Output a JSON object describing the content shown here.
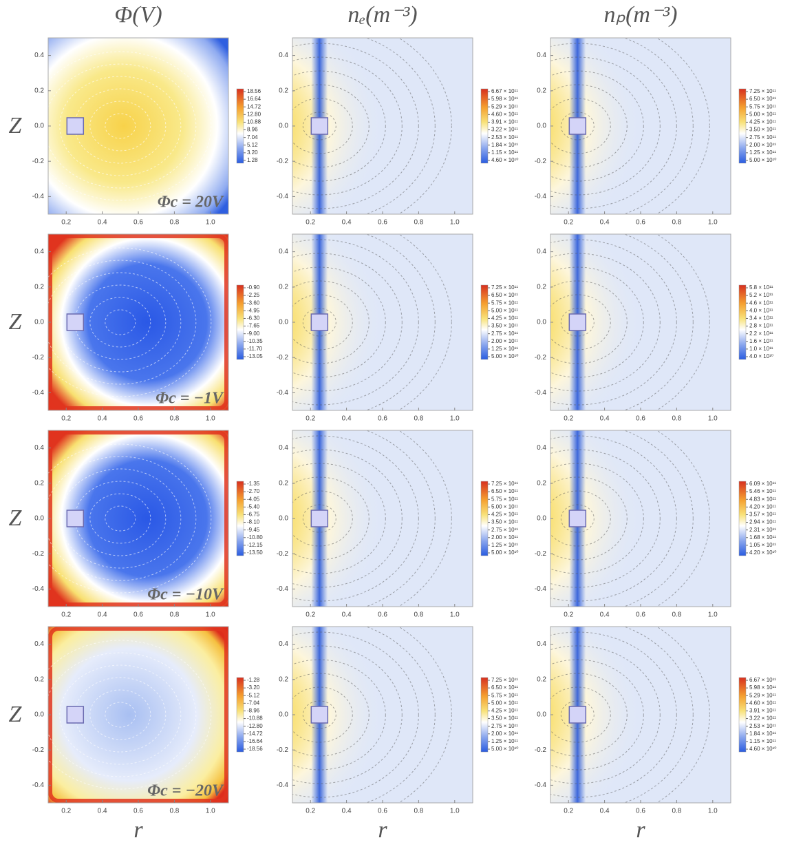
{
  "chart_data": [
    {
      "type": "contour",
      "title": "Φ(V)",
      "ylabel": "Z",
      "annotation": "Φc = 20V",
      "xlim": [
        0.1,
        1.1
      ],
      "ylim": [
        -0.5,
        0.5
      ],
      "xticks": [
        0.2,
        0.4,
        0.6,
        0.8,
        {
          "value": 1,
          "label": "1.0"
        }
      ],
      "yticks": [
        -0.4,
        -0.2,
        {
          "value": 0,
          "label": "0.0"
        },
        0.2,
        0.4
      ],
      "colorbar_ticks": [
        18.56,
        16.64,
        14.72,
        {
          "value": 12.8,
          "label": "12.80"
        },
        10.88,
        8.96,
        7.04,
        5.12,
        {
          "value": 3.2,
          "label": "3.20"
        },
        1.28
      ]
    },
    {
      "type": "contour",
      "title": "nₑ(m⁻³)",
      "xlim": [
        0.1,
        1.1
      ],
      "ylim": [
        -0.5,
        0.5
      ],
      "xticks": [
        0.2,
        0.4,
        0.6,
        0.8,
        {
          "value": 1,
          "label": "1.0"
        }
      ],
      "yticks": [
        -0.4,
        -0.2,
        {
          "value": 0,
          "label": "0.0"
        },
        0.2,
        0.4
      ],
      "colorbar_ticks": [
        {
          "value": 667000000000,
          "label": "6.67 × 10¹¹"
        },
        {
          "value": 598000000000,
          "label": "5.98 × 10¹¹"
        },
        {
          "value": 529000000000,
          "label": "5.29 × 10¹¹"
        },
        {
          "value": 460000000000,
          "label": "4.60 × 10¹¹"
        },
        {
          "value": 391000000000,
          "label": "3.91 × 10¹¹"
        },
        {
          "value": 322000000000,
          "label": "3.22 × 10¹¹"
        },
        {
          "value": 253000000000,
          "label": "2.53 × 10¹¹"
        },
        {
          "value": 184000000000,
          "label": "1.84 × 10¹¹"
        },
        {
          "value": 115000000000,
          "label": "1.15 × 10¹¹"
        },
        {
          "value": 46000000000,
          "label": "4.60 × 10¹⁰"
        }
      ]
    },
    {
      "type": "contour",
      "title": "nₚ(m⁻³)",
      "xlim": [
        0.1,
        1.1
      ],
      "ylim": [
        -0.5,
        0.5
      ],
      "xticks": [
        0.2,
        0.4,
        0.6,
        0.8,
        {
          "value": 1,
          "label": "1.0"
        }
      ],
      "yticks": [
        -0.4,
        -0.2,
        {
          "value": 0,
          "label": "0.0"
        },
        0.2,
        0.4
      ],
      "colorbar_ticks": [
        {
          "value": 725000000000,
          "label": "7.25 × 10¹¹"
        },
        {
          "value": 650000000000,
          "label": "6.50 × 10¹¹"
        },
        {
          "value": 575000000000,
          "label": "5.75 × 10¹¹"
        },
        {
          "value": 500000000000,
          "label": "5.00 × 10¹¹"
        },
        {
          "value": 425000000000,
          "label": "4.25 × 10¹¹"
        },
        {
          "value": 350000000000,
          "label": "3.50 × 10¹¹"
        },
        {
          "value": 275000000000,
          "label": "2.75 × 10¹¹"
        },
        {
          "value": 200000000000,
          "label": "2.00 × 10¹¹"
        },
        {
          "value": 125000000000,
          "label": "1.25 × 10¹¹"
        },
        {
          "value": 50000000000,
          "label": "5.00 × 10¹⁰"
        }
      ]
    },
    {
      "type": "contour",
      "ylabel": "Z",
      "annotation": "Φc = −1V",
      "xlim": [
        0.1,
        1.1
      ],
      "ylim": [
        -0.5,
        0.5
      ],
      "xticks": [
        0.2,
        0.4,
        0.6,
        0.8,
        {
          "value": 1,
          "label": "1.0"
        }
      ],
      "yticks": [
        -0.4,
        -0.2,
        {
          "value": 0,
          "label": "0.0"
        },
        0.2,
        0.4
      ],
      "colorbar_ticks": [
        {
          "value": -0.9,
          "label": "-0.90"
        },
        -2.25,
        {
          "value": -3.6,
          "label": "-3.60"
        },
        -4.95,
        {
          "value": -6.3,
          "label": "-6.30"
        },
        -7.65,
        {
          "value": -9,
          "label": "-9.00"
        },
        -10.35,
        {
          "value": -11.7,
          "label": "-11.70"
        },
        -13.05
      ]
    },
    {
      "type": "contour",
      "xlim": [
        0.1,
        1.1
      ],
      "ylim": [
        -0.5,
        0.5
      ],
      "xticks": [
        0.2,
        0.4,
        0.6,
        0.8,
        {
          "value": 1,
          "label": "1.0"
        }
      ],
      "yticks": [
        -0.4,
        -0.2,
        {
          "value": 0,
          "label": "0.0"
        },
        0.2,
        0.4
      ],
      "colorbar_ticks": [
        {
          "value": 725000000000,
          "label": "7.25 × 10¹¹"
        },
        {
          "value": 650000000000,
          "label": "6.50 × 10¹¹"
        },
        {
          "value": 575000000000,
          "label": "5.75 × 10¹¹"
        },
        {
          "value": 500000000000,
          "label": "5.00 × 10¹¹"
        },
        {
          "value": 425000000000,
          "label": "4.25 × 10¹¹"
        },
        {
          "value": 350000000000,
          "label": "3.50 × 10¹¹"
        },
        {
          "value": 275000000000,
          "label": "2.75 × 10¹¹"
        },
        {
          "value": 200000000000,
          "label": "2.00 × 10¹¹"
        },
        {
          "value": 125000000000,
          "label": "1.25 × 10¹¹"
        },
        {
          "value": 50000000000,
          "label": "5.00 × 10¹⁰"
        }
      ]
    },
    {
      "type": "contour",
      "xlim": [
        0.1,
        1.1
      ],
      "ylim": [
        -0.5,
        0.5
      ],
      "xticks": [
        0.2,
        0.4,
        0.6,
        0.8,
        {
          "value": 1,
          "label": "1.0"
        }
      ],
      "yticks": [
        -0.4,
        -0.2,
        {
          "value": 0,
          "label": "0.0"
        },
        0.2,
        0.4
      ],
      "colorbar_ticks": [
        {
          "value": 580000000000,
          "label": "5.8 × 10¹¹"
        },
        {
          "value": 520000000000,
          "label": "5.2 × 10¹¹"
        },
        {
          "value": 460000000000,
          "label": "4.6 × 10¹¹"
        },
        {
          "value": 400000000000,
          "label": "4.0 × 10¹¹"
        },
        {
          "value": 340000000000,
          "label": "3.4 × 10¹¹"
        },
        {
          "value": 280000000000,
          "label": "2.8 × 10¹¹"
        },
        {
          "value": 220000000000,
          "label": "2.2 × 10¹¹"
        },
        {
          "value": 160000000000,
          "label": "1.6 × 10¹¹"
        },
        {
          "value": 100000000000,
          "label": "1.0 × 10¹¹"
        },
        {
          "value": 40000000000,
          "label": "4.0 × 10¹⁰"
        }
      ]
    },
    {
      "type": "contour",
      "ylabel": "Z",
      "annotation": "Φc = −10V",
      "xlim": [
        0.1,
        1.1
      ],
      "ylim": [
        -0.5,
        0.5
      ],
      "xticks": [
        0.2,
        0.4,
        0.6,
        0.8,
        {
          "value": 1,
          "label": "1.0"
        }
      ],
      "yticks": [
        -0.4,
        -0.2,
        {
          "value": 0,
          "label": "0.0"
        },
        0.2,
        0.4
      ],
      "colorbar_ticks": [
        -1.35,
        {
          "value": -2.7,
          "label": "-2.70"
        },
        -4.05,
        {
          "value": -5.4,
          "label": "-5.40"
        },
        -6.75,
        {
          "value": -8.1,
          "label": "-8.10"
        },
        -9.45,
        {
          "value": -10.8,
          "label": "-10.80"
        },
        -12.15,
        {
          "value": -13.5,
          "label": "-13.50"
        }
      ]
    },
    {
      "type": "contour",
      "xlim": [
        0.1,
        1.1
      ],
      "ylim": [
        -0.5,
        0.5
      ],
      "xticks": [
        0.2,
        0.4,
        0.6,
        0.8,
        {
          "value": 1,
          "label": "1.0"
        }
      ],
      "yticks": [
        -0.4,
        -0.2,
        {
          "value": 0,
          "label": "0.0"
        },
        0.2,
        0.4
      ],
      "colorbar_ticks": [
        {
          "value": 725000000000,
          "label": "7.25 × 10¹¹"
        },
        {
          "value": 650000000000,
          "label": "6.50 × 10¹¹"
        },
        {
          "value": 575000000000,
          "label": "5.75 × 10¹¹"
        },
        {
          "value": 500000000000,
          "label": "5.00 × 10¹¹"
        },
        {
          "value": 425000000000,
          "label": "4.25 × 10¹¹"
        },
        {
          "value": 350000000000,
          "label": "3.50 × 10¹¹"
        },
        {
          "value": 275000000000,
          "label": "2.75 × 10¹¹"
        },
        {
          "value": 200000000000,
          "label": "2.00 × 10¹¹"
        },
        {
          "value": 125000000000,
          "label": "1.25 × 10¹¹"
        },
        {
          "value": 50000000000,
          "label": "5.00 × 10¹⁰"
        }
      ]
    },
    {
      "type": "contour",
      "xlim": [
        0.1,
        1.1
      ],
      "ylim": [
        -0.5,
        0.5
      ],
      "xticks": [
        0.2,
        0.4,
        0.6,
        0.8,
        {
          "value": 1,
          "label": "1.0"
        }
      ],
      "yticks": [
        -0.4,
        -0.2,
        {
          "value": 0,
          "label": "0.0"
        },
        0.2,
        0.4
      ],
      "colorbar_ticks": [
        {
          "value": 609000000000,
          "label": "6.09 × 10¹¹"
        },
        {
          "value": 546000000000,
          "label": "5.46 × 10¹¹"
        },
        {
          "value": 483000000000,
          "label": "4.83 × 10¹¹"
        },
        {
          "value": 420000000000,
          "label": "4.20 × 10¹¹"
        },
        {
          "value": 357000000000,
          "label": "3.57 × 10¹¹"
        },
        {
          "value": 294000000000,
          "label": "2.94 × 10¹¹"
        },
        {
          "value": 231000000000,
          "label": "2.31 × 10¹¹"
        },
        {
          "value": 168000000000,
          "label": "1.68 × 10¹¹"
        },
        {
          "value": 105000000000,
          "label": "1.05 × 10¹¹"
        },
        {
          "value": 42000000000,
          "label": "4.20 × 10¹⁰"
        }
      ]
    },
    {
      "type": "contour",
      "ylabel": "Z",
      "xlabel": "r",
      "annotation": "Φc = −20V",
      "xlim": [
        0.1,
        1.1
      ],
      "ylim": [
        -0.5,
        0.5
      ],
      "xticks": [
        0.2,
        0.4,
        0.6,
        0.8,
        {
          "value": 1,
          "label": "1.0"
        }
      ],
      "yticks": [
        -0.4,
        -0.2,
        {
          "value": 0,
          "label": "0.0"
        },
        0.2,
        0.4
      ],
      "colorbar_ticks": [
        -1.28,
        {
          "value": -3.2,
          "label": "-3.20"
        },
        -5.12,
        -7.04,
        -8.96,
        -10.88,
        {
          "value": -12.8,
          "label": "-12.80"
        },
        -14.72,
        -16.64,
        -18.56
      ]
    },
    {
      "type": "contour",
      "xlabel": "r",
      "xlim": [
        0.1,
        1.1
      ],
      "ylim": [
        -0.5,
        0.5
      ],
      "xticks": [
        0.2,
        0.4,
        0.6,
        0.8,
        {
          "value": 1,
          "label": "1.0"
        }
      ],
      "yticks": [
        -0.4,
        -0.2,
        {
          "value": 0,
          "label": "0.0"
        },
        0.2,
        0.4
      ],
      "colorbar_ticks": [
        {
          "value": 725000000000,
          "label": "7.25 × 10¹¹"
        },
        {
          "value": 650000000000,
          "label": "6.50 × 10¹¹"
        },
        {
          "value": 575000000000,
          "label": "5.75 × 10¹¹"
        },
        {
          "value": 500000000000,
          "label": "5.00 × 10¹¹"
        },
        {
          "value": 425000000000,
          "label": "4.25 × 10¹¹"
        },
        {
          "value": 350000000000,
          "label": "3.50 × 10¹¹"
        },
        {
          "value": 275000000000,
          "label": "2.75 × 10¹¹"
        },
        {
          "value": 200000000000,
          "label": "2.00 × 10¹¹"
        },
        {
          "value": 125000000000,
          "label": "1.25 × 10¹¹"
        },
        {
          "value": 50000000000,
          "label": "5.00 × 10¹⁰"
        }
      ]
    },
    {
      "type": "contour",
      "xlabel": "r",
      "xlim": [
        0.1,
        1.1
      ],
      "ylim": [
        -0.5,
        0.5
      ],
      "xticks": [
        0.2,
        0.4,
        0.6,
        0.8,
        {
          "value": 1,
          "label": "1.0"
        }
      ],
      "yticks": [
        -0.4,
        -0.2,
        {
          "value": 0,
          "label": "0.0"
        },
        0.2,
        0.4
      ],
      "colorbar_ticks": [
        {
          "value": 667000000000,
          "label": "6.67 × 10¹¹"
        },
        {
          "value": 598000000000,
          "label": "5.98 × 10¹¹"
        },
        {
          "value": 529000000000,
          "label": "5.29 × 10¹¹"
        },
        {
          "value": 460000000000,
          "label": "4.60 × 10¹¹"
        },
        {
          "value": 391000000000,
          "label": "3.91 × 10¹¹"
        },
        {
          "value": 322000000000,
          "label": "3.22 × 10¹¹"
        },
        {
          "value": 253000000000,
          "label": "2.53 × 10¹¹"
        },
        {
          "value": 184000000000,
          "label": "1.84 × 10¹¹"
        },
        {
          "value": 115000000000,
          "label": "1.15 × 10¹¹"
        },
        {
          "value": 46000000000,
          "label": "4.60 × 10¹⁰"
        }
      ]
    }
  ]
}
